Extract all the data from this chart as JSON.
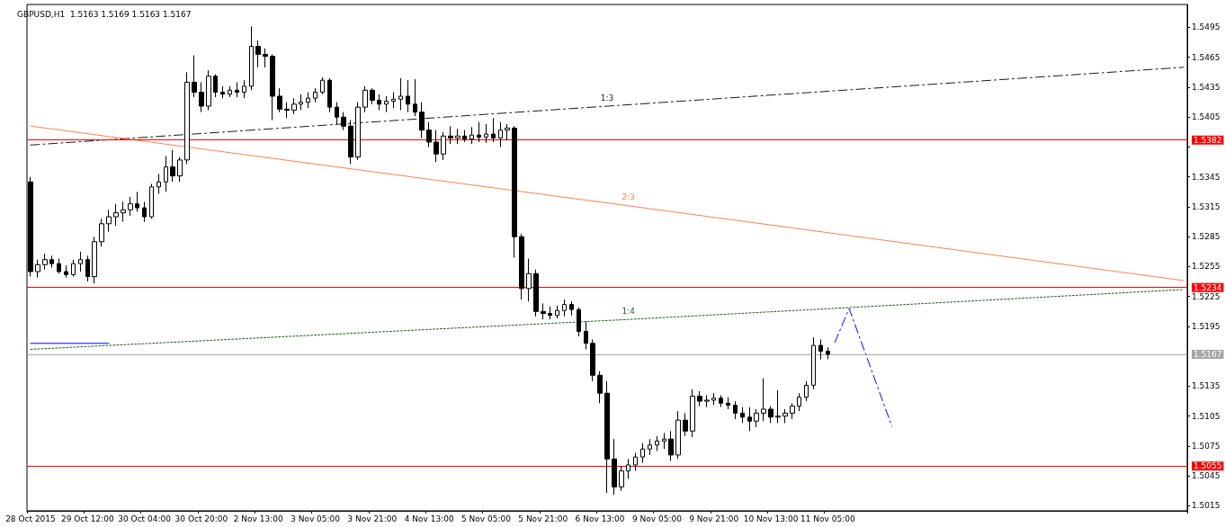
{
  "chart_data": {
    "type": "candlestick",
    "title": "GBPUSD,H1  1.5163 1.5169 1.5163 1.5167",
    "color": "#000000",
    "categories": [
      "28 Oct 2015",
      null,
      null,
      null,
      null,
      null,
      null,
      null,
      "29 Oct 12:00",
      null,
      null,
      null,
      null,
      null,
      null,
      null,
      "30 Oct 04:00",
      null,
      null,
      null,
      null,
      null,
      null,
      null,
      "30 Oct 20:00",
      null,
      null,
      null,
      null,
      null,
      null,
      null,
      "2 Nov 13:00",
      null,
      null,
      null,
      null,
      null,
      null,
      null,
      "3 Nov 05:00",
      null,
      null,
      null,
      null,
      null,
      null,
      null,
      "3 Nov 21:00",
      null,
      null,
      null,
      null,
      null,
      null,
      null,
      "4 Nov 13:00",
      null,
      null,
      null,
      null,
      null,
      null,
      null,
      "5 Nov 05:00",
      null,
      null,
      null,
      null,
      null,
      null,
      null,
      "5 Nov 21:00",
      null,
      null,
      null,
      null,
      null,
      null,
      null,
      "6 Nov 13:00",
      null,
      null,
      null,
      null,
      null,
      null,
      null,
      "9 Nov 05:00",
      null,
      null,
      null,
      null,
      null,
      null,
      null,
      "9 Nov 21:00",
      null,
      null,
      null,
      null,
      null,
      null,
      null,
      "10 Nov 13:00",
      null,
      null,
      null,
      null,
      null,
      null,
      null,
      "11 Nov 05:00",
      null,
      null,
      null,
      null,
      null,
      null,
      null,
      null,
      null,
      null,
      null,
      null,
      null,
      null,
      null,
      null,
      null,
      null,
      null,
      null,
      null,
      null,
      null,
      null,
      null,
      null,
      null,
      null,
      null,
      null,
      null,
      null,
      null,
      null,
      null,
      null,
      null,
      null,
      null,
      null,
      null,
      null,
      null,
      null,
      null,
      null,
      null,
      null,
      null,
      null
    ],
    "ohlc": [
      [
        1.534,
        1.5345,
        1.5245,
        1.525
      ],
      [
        1.525,
        1.5262,
        1.5244,
        1.5257
      ],
      [
        1.5257,
        1.5268,
        1.5252,
        1.5262
      ],
      [
        1.5262,
        1.5266,
        1.5254,
        1.5258
      ],
      [
        1.5258,
        1.5263,
        1.5248,
        1.525
      ],
      [
        1.525,
        1.5256,
        1.5244,
        1.5247
      ],
      [
        1.5247,
        1.5262,
        1.5245,
        1.5258
      ],
      [
        1.5258,
        1.527,
        1.525,
        1.5262
      ],
      [
        1.5262,
        1.5266,
        1.524,
        1.5245
      ],
      [
        1.5245,
        1.5285,
        1.5238,
        1.528
      ],
      [
        1.528,
        1.5303,
        1.5275,
        1.5298
      ],
      [
        1.5298,
        1.5312,
        1.529,
        1.5305
      ],
      [
        1.5305,
        1.5318,
        1.5296,
        1.5309
      ],
      [
        1.5309,
        1.532,
        1.53,
        1.5312
      ],
      [
        1.5312,
        1.5325,
        1.5306,
        1.5318
      ],
      [
        1.5318,
        1.533,
        1.531,
        1.5314
      ],
      [
        1.5314,
        1.532,
        1.53,
        1.5305
      ],
      [
        1.5305,
        1.5338,
        1.5303,
        1.5335
      ],
      [
        1.5335,
        1.5348,
        1.5328,
        1.534
      ],
      [
        1.534,
        1.5366,
        1.533,
        1.5355
      ],
      [
        1.5355,
        1.5372,
        1.534,
        1.5346
      ],
      [
        1.5346,
        1.5365,
        1.534,
        1.5362
      ],
      [
        1.5362,
        1.545,
        1.5358,
        1.544
      ],
      [
        1.544,
        1.5467,
        1.5425,
        1.543
      ],
      [
        1.543,
        1.544,
        1.541,
        1.5416
      ],
      [
        1.5416,
        1.5452,
        1.5412,
        1.5446
      ],
      [
        1.5446,
        1.5448,
        1.5425,
        1.543
      ],
      [
        1.543,
        1.5436,
        1.5424,
        1.5428
      ],
      [
        1.5428,
        1.5436,
        1.5425,
        1.5432
      ],
      [
        1.5432,
        1.544,
        1.5425,
        1.543
      ],
      [
        1.543,
        1.5442,
        1.5424,
        1.5436
      ],
      [
        1.5436,
        1.5496,
        1.5432,
        1.5476
      ],
      [
        1.5476,
        1.5482,
        1.5455,
        1.5468
      ],
      [
        1.5468,
        1.5474,
        1.5455,
        1.5466
      ],
      [
        1.5466,
        1.5468,
        1.5402,
        1.5426
      ],
      [
        1.5426,
        1.5434,
        1.541,
        1.5413
      ],
      [
        1.5413,
        1.542,
        1.5404,
        1.5412
      ],
      [
        1.5412,
        1.5424,
        1.5408,
        1.5418
      ],
      [
        1.5418,
        1.5428,
        1.5412,
        1.542
      ],
      [
        1.542,
        1.543,
        1.5414,
        1.5424
      ],
      [
        1.5424,
        1.5434,
        1.542,
        1.543
      ],
      [
        1.543,
        1.5445,
        1.5428,
        1.5442
      ],
      [
        1.5442,
        1.5444,
        1.541,
        1.5415
      ],
      [
        1.5415,
        1.542,
        1.5398,
        1.5405
      ],
      [
        1.5405,
        1.541,
        1.5392,
        1.5396
      ],
      [
        1.5396,
        1.5402,
        1.5358,
        1.5365
      ],
      [
        1.5365,
        1.542,
        1.5362,
        1.5415
      ],
      [
        1.5415,
        1.5436,
        1.541,
        1.5432
      ],
      [
        1.5432,
        1.5434,
        1.5418,
        1.5422
      ],
      [
        1.5422,
        1.5428,
        1.5412,
        1.5418
      ],
      [
        1.5418,
        1.5426,
        1.541,
        1.5421
      ],
      [
        1.5421,
        1.543,
        1.5414,
        1.5423
      ],
      [
        1.5423,
        1.5444,
        1.5412,
        1.5426
      ],
      [
        1.5426,
        1.5442,
        1.541,
        1.5418
      ],
      [
        1.5418,
        1.5443,
        1.5406,
        1.541
      ],
      [
        1.541,
        1.542,
        1.5384,
        1.5392
      ],
      [
        1.5392,
        1.54,
        1.5375,
        1.538
      ],
      [
        1.538,
        1.5392,
        1.536,
        1.5368
      ],
      [
        1.5368,
        1.539,
        1.5362,
        1.5386
      ],
      [
        1.5386,
        1.5396,
        1.5378,
        1.5384
      ],
      [
        1.5384,
        1.5393,
        1.5378,
        1.5386
      ],
      [
        1.5386,
        1.5392,
        1.538,
        1.5383
      ],
      [
        1.5383,
        1.5395,
        1.5378,
        1.5387
      ],
      [
        1.5387,
        1.54,
        1.538,
        1.5385
      ],
      [
        1.5385,
        1.5398,
        1.5379,
        1.5388
      ],
      [
        1.5388,
        1.5404,
        1.538,
        1.5384
      ],
      [
        1.5384,
        1.54,
        1.5375,
        1.5392
      ],
      [
        1.5392,
        1.5398,
        1.5382,
        1.5394
      ],
      [
        1.5394,
        1.5396,
        1.5264,
        1.5285
      ],
      [
        1.5285,
        1.5288,
        1.5222,
        1.5233
      ],
      [
        1.5233,
        1.5263,
        1.522,
        1.5248
      ],
      [
        1.5248,
        1.5252,
        1.5205,
        1.521
      ],
      [
        1.521,
        1.5218,
        1.5202,
        1.5208
      ],
      [
        1.5208,
        1.5215,
        1.5202,
        1.5206
      ],
      [
        1.5206,
        1.5216,
        1.5203,
        1.5211
      ],
      [
        1.5211,
        1.5222,
        1.5205,
        1.5217
      ],
      [
        1.5217,
        1.522,
        1.5206,
        1.5212
      ],
      [
        1.5212,
        1.5214,
        1.5185,
        1.519
      ],
      [
        1.519,
        1.52,
        1.5172,
        1.5178
      ],
      [
        1.5178,
        1.5182,
        1.514,
        1.5146
      ],
      [
        1.5146,
        1.515,
        1.5118,
        1.5128
      ],
      [
        1.5128,
        1.514,
        1.5028,
        1.5062
      ],
      [
        1.5062,
        1.5082,
        1.5026,
        1.5034
      ],
      [
        1.5034,
        1.5055,
        1.503,
        1.505
      ],
      [
        1.505,
        1.5062,
        1.5042,
        1.5056
      ],
      [
        1.5056,
        1.5068,
        1.505,
        1.5064
      ],
      [
        1.5064,
        1.5078,
        1.5058,
        1.5072
      ],
      [
        1.5072,
        1.5082,
        1.5066,
        1.5076
      ],
      [
        1.5076,
        1.5085,
        1.507,
        1.508
      ],
      [
        1.508,
        1.5088,
        1.5072,
        1.5082
      ],
      [
        1.5082,
        1.509,
        1.506,
        1.5066
      ],
      [
        1.5066,
        1.511,
        1.5062,
        1.5101
      ],
      [
        1.5101,
        1.5108,
        1.5085,
        1.509
      ],
      [
        1.509,
        1.5132,
        1.5084,
        1.5125
      ],
      [
        1.5125,
        1.513,
        1.5115,
        1.512
      ],
      [
        1.512,
        1.5126,
        1.5114,
        1.5121
      ],
      [
        1.5121,
        1.5128,
        1.5116,
        1.5123
      ],
      [
        1.5123,
        1.5126,
        1.5114,
        1.5118
      ],
      [
        1.5118,
        1.5124,
        1.5112,
        1.5116
      ],
      [
        1.5116,
        1.512,
        1.5102,
        1.5108
      ],
      [
        1.5108,
        1.5114,
        1.5098,
        1.5104
      ],
      [
        1.5104,
        1.5114,
        1.509,
        1.51
      ],
      [
        1.51,
        1.5112,
        1.5094,
        1.5108
      ],
      [
        1.5108,
        1.5143,
        1.51,
        1.5112
      ],
      [
        1.5112,
        1.5115,
        1.5098,
        1.5104
      ],
      [
        1.5104,
        1.5131,
        1.5098,
        1.5105
      ],
      [
        1.5105,
        1.5112,
        1.5098,
        1.5108
      ],
      [
        1.5108,
        1.5118,
        1.5102,
        1.5115
      ],
      [
        1.5115,
        1.5128,
        1.511,
        1.5124
      ],
      [
        1.5124,
        1.514,
        1.512,
        1.5136
      ],
      [
        1.5136,
        1.5184,
        1.5132,
        1.5176
      ],
      [
        1.5176,
        1.5182,
        1.5162,
        1.517
      ],
      [
        1.517,
        1.5174,
        1.5162,
        1.5167
      ],
      null,
      null,
      null,
      null,
      null,
      null,
      null,
      null,
      null,
      null,
      null,
      null,
      null,
      null,
      null,
      null,
      null,
      null,
      null,
      null,
      null,
      null,
      null,
      null,
      null,
      null,
      null,
      null,
      null,
      null,
      null,
      null,
      null,
      null,
      null,
      null,
      null,
      null,
      null,
      null,
      null,
      null,
      null,
      null,
      null,
      null,
      null,
      null,
      null,
      null
    ],
    "ylim": [
      1.501,
      1.5518
    ],
    "yticks": [
      1.5015,
      1.5045,
      1.5075,
      1.5105,
      1.5135,
      1.5195,
      1.5225,
      1.5255,
      1.5285,
      1.5315,
      1.5345,
      {
        "value": 1.5375,
        "label": null
      },
      1.5405,
      1.5435,
      1.5465,
      1.5495
    ],
    "ref_lines": [
      {
        "axis": "y",
        "value": 1.5382,
        "label": "1.5382",
        "color": "#ff0000",
        "line_style": "solid"
      },
      {
        "axis": "y",
        "value": 1.5234,
        "label": "1.5234",
        "color": "#ff0000",
        "line_style": "solid"
      },
      {
        "axis": "y",
        "value": 1.5167,
        "label": "1.5167",
        "color": "#a6a6a6",
        "line_style": "solid"
      },
      {
        "axis": "y",
        "value": 1.5055,
        "label": "1.5055",
        "color": "#ff0000",
        "line_style": "solid"
      }
    ],
    "series": [
      {
        "type": "line",
        "name": "1:3",
        "color": "#1a1a1a",
        "line_style": "dashed",
        "values": [
          1.5377,
          null,
          null,
          null,
          null,
          null,
          null,
          null,
          null,
          null,
          null,
          null,
          null,
          null,
          null,
          null,
          null,
          null,
          null,
          null,
          null,
          null,
          null,
          null,
          null,
          null,
          null,
          null,
          null,
          null,
          null,
          null,
          null,
          null,
          null,
          null,
          null,
          null,
          null,
          null,
          null,
          null,
          null,
          null,
          null,
          null,
          null,
          null,
          null,
          null,
          null,
          null,
          null,
          null,
          null,
          null,
          null,
          null,
          null,
          null,
          null,
          null,
          null,
          null,
          null,
          null,
          null,
          null,
          null,
          null,
          null,
          null,
          null,
          null,
          null,
          null,
          null,
          null,
          null,
          null,
          null,
          1.5416,
          null,
          null,
          null,
          null,
          null,
          null,
          null,
          null,
          null,
          null,
          null,
          null,
          null,
          null,
          null,
          null,
          null,
          null,
          null,
          null,
          null,
          null,
          null,
          null,
          null,
          null,
          null,
          null,
          null,
          null,
          null,
          null,
          null,
          null,
          null,
          null,
          null,
          null,
          null,
          null,
          null,
          null,
          null,
          null,
          null,
          null,
          null,
          null,
          null,
          null,
          null,
          null,
          null,
          null,
          null,
          null,
          null,
          null,
          null,
          null,
          null,
          null,
          null,
          null,
          null,
          null,
          null,
          null,
          null,
          null,
          null,
          null,
          null,
          null,
          null,
          null,
          null,
          null,
          null,
          null,
          1.5455
        ]
      },
      {
        "type": "line",
        "name": "2:3",
        "color": "#ff7f50",
        "line_style": "solid",
        "values": [
          1.5396,
          null,
          null,
          null,
          null,
          null,
          null,
          null,
          null,
          null,
          null,
          null,
          null,
          null,
          null,
          null,
          null,
          null,
          null,
          null,
          null,
          null,
          null,
          null,
          null,
          null,
          null,
          null,
          null,
          null,
          null,
          null,
          null,
          null,
          null,
          null,
          null,
          null,
          null,
          null,
          null,
          null,
          null,
          null,
          null,
          null,
          null,
          null,
          null,
          null,
          null,
          null,
          null,
          null,
          null,
          null,
          null,
          null,
          null,
          null,
          null,
          null,
          null,
          null,
          null,
          null,
          null,
          null,
          null,
          null,
          null,
          null,
          null,
          null,
          null,
          null,
          null,
          null,
          null,
          null,
          null,
          null,
          null,
          null,
          1.5316,
          null,
          null,
          null,
          null,
          null,
          null,
          null,
          null,
          null,
          null,
          null,
          null,
          null,
          null,
          null,
          null,
          null,
          null,
          null,
          null,
          null,
          null,
          null,
          null,
          null,
          null,
          null,
          null,
          null,
          null,
          null,
          null,
          null,
          null,
          null,
          null,
          null,
          null,
          null,
          null,
          null,
          null,
          null,
          null,
          null,
          null,
          null,
          null,
          null,
          null,
          null,
          null,
          null,
          null,
          null,
          null,
          null,
          null,
          null,
          null,
          null,
          null,
          null,
          null,
          null,
          null,
          null,
          null,
          null,
          null,
          null,
          null,
          null,
          null,
          null,
          null,
          null,
          1.5241
        ]
      },
      {
        "type": "line",
        "name": "1:4",
        "color": "#1f5f1f",
        "line_style": "dotted",
        "values": [
          1.5172,
          null,
          null,
          null,
          null,
          null,
          null,
          null,
          null,
          null,
          null,
          null,
          null,
          null,
          null,
          null,
          null,
          null,
          null,
          null,
          null,
          null,
          null,
          null,
          null,
          null,
          null,
          null,
          null,
          null,
          null,
          null,
          null,
          null,
          null,
          null,
          null,
          null,
          null,
          null,
          null,
          null,
          null,
          null,
          null,
          null,
          null,
          null,
          null,
          null,
          null,
          null,
          null,
          null,
          null,
          null,
          null,
          null,
          null,
          null,
          null,
          null,
          null,
          null,
          null,
          null,
          null,
          null,
          null,
          null,
          null,
          null,
          null,
          null,
          null,
          null,
          null,
          null,
          null,
          null,
          null,
          null,
          null,
          null,
          1.5202,
          null,
          null,
          null,
          null,
          null,
          null,
          null,
          null,
          null,
          null,
          null,
          null,
          null,
          null,
          null,
          null,
          null,
          null,
          null,
          null,
          null,
          null,
          null,
          null,
          null,
          null,
          null,
          null,
          null,
          null,
          null,
          null,
          null,
          null,
          null,
          null,
          null,
          null,
          null,
          null,
          null,
          null,
          null,
          null,
          null,
          null,
          null,
          null,
          null,
          null,
          null,
          null,
          null,
          null,
          null,
          null,
          null,
          null,
          null,
          null,
          null,
          null,
          null,
          null,
          null,
          null,
          null,
          null,
          null,
          null,
          null,
          null,
          null,
          null,
          null,
          null,
          null,
          1.5232
        ]
      },
      {
        "type": "line",
        "color": "#0000ff",
        "line_style": "solid",
        "values": [
          1.5178,
          null,
          null,
          null,
          null,
          null,
          null,
          null,
          null,
          null,
          null,
          1.5178,
          null,
          null,
          null,
          null,
          null,
          null,
          null,
          null,
          null,
          null,
          null,
          null,
          null,
          null,
          null,
          null,
          null,
          null,
          null,
          null,
          null,
          null,
          null,
          null,
          null,
          null,
          null,
          null,
          null,
          null,
          null,
          null,
          null,
          null,
          null,
          null,
          null,
          null,
          null,
          null,
          null,
          null,
          null,
          null,
          null,
          null,
          null,
          null,
          null,
          null,
          null,
          null,
          null,
          null,
          null,
          null,
          null,
          null,
          null,
          null,
          null,
          null,
          null,
          null,
          null,
          null,
          null,
          null,
          null,
          null,
          null,
          null,
          null,
          null,
          null,
          null,
          null,
          null,
          null,
          null,
          null,
          null,
          null,
          null,
          null,
          null,
          null,
          null,
          null,
          null,
          null,
          null,
          null,
          null,
          null,
          null,
          null,
          null,
          null,
          null,
          null,
          null,
          null,
          null,
          null,
          null,
          null,
          null,
          null,
          null,
          null,
          null,
          null,
          null,
          null,
          null,
          null,
          null,
          null,
          null,
          null,
          null,
          null,
          null,
          null,
          null,
          null,
          null,
          null,
          null,
          null,
          null,
          null,
          null,
          null,
          null,
          null,
          null,
          null,
          null,
          null,
          null,
          null,
          null,
          null,
          null,
          null,
          null,
          null,
          null,
          null
        ]
      },
      {
        "type": "line",
        "color": "#0000ff",
        "line_style": "dashed",
        "values": [
          null,
          null,
          null,
          null,
          null,
          null,
          null,
          null,
          null,
          null,
          null,
          null,
          null,
          null,
          null,
          null,
          null,
          null,
          null,
          null,
          null,
          null,
          null,
          null,
          null,
          null,
          null,
          null,
          null,
          null,
          null,
          null,
          null,
          null,
          null,
          null,
          null,
          null,
          null,
          null,
          null,
          null,
          null,
          null,
          null,
          null,
          null,
          null,
          null,
          null,
          null,
          null,
          null,
          null,
          null,
          null,
          null,
          null,
          null,
          null,
          null,
          null,
          null,
          null,
          null,
          null,
          null,
          null,
          null,
          null,
          null,
          null,
          null,
          null,
          null,
          null,
          null,
          null,
          null,
          null,
          null,
          null,
          null,
          null,
          null,
          null,
          null,
          null,
          null,
          null,
          null,
          null,
          null,
          null,
          null,
          null,
          null,
          null,
          null,
          null,
          null,
          null,
          null,
          null,
          null,
          null,
          null,
          null,
          null,
          null,
          null,
          null,
          null,
          1.5179,
          null,
          1.5213,
          null,
          null,
          null,
          null,
          null,
          1.5095,
          null,
          null,
          null,
          null,
          null,
          null,
          null,
          null,
          null,
          null,
          null,
          null,
          null,
          null,
          null,
          null,
          null,
          null,
          null,
          null,
          null,
          null,
          null,
          null,
          null,
          null,
          null,
          null,
          null,
          null,
          null,
          null,
          null,
          null,
          null,
          null,
          null,
          null,
          null,
          null,
          null
        ]
      }
    ],
    "grid": false,
    "legend": false
  }
}
